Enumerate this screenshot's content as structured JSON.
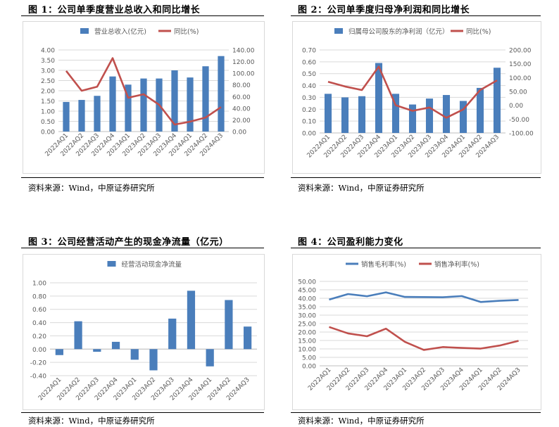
{
  "panels": [
    {
      "title": "图 1：公司单季度营业总收入和同比增长",
      "source": "资料来源：Wind，中原证券研究所"
    },
    {
      "title": "图 2：公司单季度归母净利润和同比增长",
      "source": "资料来源：Wind，中原证券研究所"
    },
    {
      "title": "图 3：公司经营活动产生的现金净流量（亿元）",
      "source": "资料来源：Wind，中原证券研究所"
    },
    {
      "title": "图 4：公司盈利能力变化",
      "source": "资料来源：Wind，中原证券研究所"
    }
  ],
  "colors": {
    "bar": "#4a7ebb",
    "line_red": "#c0504d",
    "grid": "#d9d9d9",
    "axis_text": "#595959"
  },
  "chart_data": [
    {
      "type": "bar",
      "categories": [
        "2022AQ1",
        "2022AQ2",
        "2022AQ3",
        "2022AQ4",
        "2023AQ1",
        "2023AQ2",
        "2023AQ3",
        "2023AQ4",
        "2024AQ1",
        "2024AQ2",
        "2024AQ3"
      ],
      "series": [
        {
          "name": "营业总收入(亿元)",
          "type": "bar",
          "axis": "left",
          "values": [
            1.45,
            1.55,
            1.75,
            2.7,
            2.3,
            2.6,
            2.6,
            3.0,
            2.65,
            3.2,
            3.7
          ]
        },
        {
          "name": "同比(%)",
          "type": "line",
          "axis": "right",
          "values": [
            104,
            70,
            77,
            126,
            58,
            64,
            46,
            12,
            17,
            24,
            42
          ]
        }
      ],
      "ylim_left": [
        0,
        4
      ],
      "yticks_left": [
        "0.00",
        "0.50",
        "1.00",
        "1.50",
        "2.00",
        "2.50",
        "3.00",
        "3.50",
        "4.00"
      ],
      "ylim_right": [
        0,
        140
      ],
      "yticks_right": [
        "0.00",
        "20.00",
        "40.00",
        "60.00",
        "80.00",
        "100.00",
        "120.00",
        "140.00"
      ],
      "legend": "top-center",
      "grid": true
    },
    {
      "type": "bar",
      "categories": [
        "2022AQ1",
        "2022AQ2",
        "2022AQ3",
        "2022AQ4",
        "2023AQ1",
        "2023AQ2",
        "2023AQ3",
        "2023AQ4",
        "2024AQ1",
        "2024AQ2",
        "2024AQ3"
      ],
      "series": [
        {
          "name": "归属母公司股东的净利润（亿元）",
          "type": "bar",
          "axis": "left",
          "values": [
            0.33,
            0.3,
            0.31,
            0.59,
            0.33,
            0.24,
            0.29,
            0.32,
            0.27,
            0.38,
            0.55
          ]
        },
        {
          "name": "同比(%)",
          "type": "line",
          "axis": "right",
          "values": [
            85,
            68,
            55,
            140,
            0,
            -20,
            -8,
            -45,
            -15,
            55,
            90
          ]
        }
      ],
      "ylim_left": [
        0,
        0.7
      ],
      "yticks_left": [
        "0.00",
        "0.10",
        "0.20",
        "0.30",
        "0.40",
        "0.50",
        "0.60",
        "0.70"
      ],
      "ylim_right": [
        -100,
        200
      ],
      "yticks_right": [
        "-100.00",
        "-50.00",
        "0.00",
        "50.00",
        "100.00",
        "150.00",
        "200.00"
      ],
      "legend": "top-center",
      "grid": true
    },
    {
      "type": "bar",
      "categories": [
        "2022AQ1",
        "2022AQ2",
        "2022AQ3",
        "2022AQ4",
        "2023AQ1",
        "2023AQ2",
        "2023AQ3",
        "2023AQ4",
        "2024AQ1",
        "2024AQ2",
        "2024AQ3"
      ],
      "series": [
        {
          "name": "经营活动现金净流量",
          "type": "bar",
          "axis": "left",
          "values": [
            -0.09,
            0.42,
            -0.04,
            0.11,
            -0.16,
            -0.32,
            0.46,
            0.88,
            -0.26,
            0.74,
            0.34
          ]
        }
      ],
      "ylim_left": [
        -0.4,
        1.0
      ],
      "yticks_left": [
        "-0.40",
        "-0.20",
        "0.00",
        "0.20",
        "0.40",
        "0.60",
        "0.80",
        "1.00"
      ],
      "legend": "top-center",
      "grid": true
    },
    {
      "type": "line",
      "categories": [
        "2022AQ1",
        "2022AQ2",
        "2022AQ3",
        "2022AQ4",
        "2023AQ1",
        "2023AQ2",
        "2023AQ3",
        "2023AQ4",
        "2024AQ1",
        "2024AQ2",
        "2024AQ3"
      ],
      "series": [
        {
          "name": "销售毛利率(%)",
          "type": "line",
          "axis": "left",
          "color": "blue",
          "values": [
            39.2,
            42.5,
            41.2,
            43.5,
            40.8,
            40.7,
            40.6,
            41.3,
            37.8,
            38.5,
            39.0
          ]
        },
        {
          "name": "销售净利率(%)",
          "type": "line",
          "axis": "left",
          "color": "red",
          "values": [
            23.0,
            19.2,
            17.5,
            22.0,
            14.2,
            9.4,
            11.1,
            10.6,
            10.2,
            12.0,
            14.8
          ]
        }
      ],
      "ylim_left": [
        0,
        50
      ],
      "yticks_left": [
        "0.00",
        "5.00",
        "10.00",
        "15.00",
        "20.00",
        "25.00",
        "30.00",
        "35.00",
        "40.00",
        "45.00",
        "50.00"
      ],
      "legend": "top-center",
      "grid": true
    }
  ]
}
